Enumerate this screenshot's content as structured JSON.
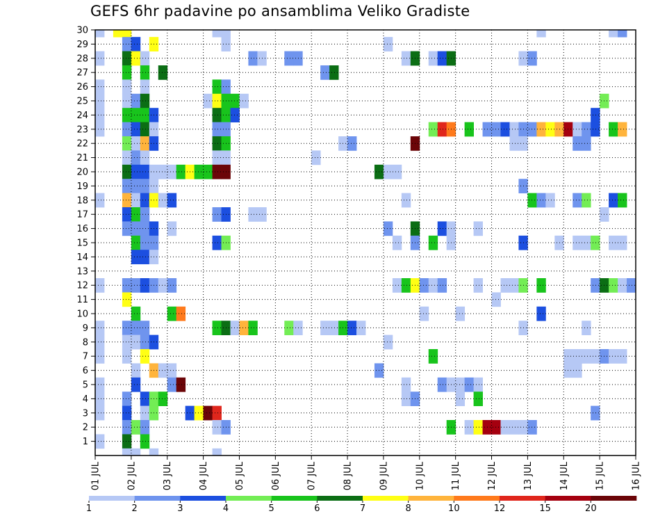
{
  "title": "GEFS 6hr padavine po ansamblima Veliko Gradiste",
  "chart_data": {
    "type": "heatmap",
    "title": "GEFS 6hr padavine po ansamblima Veliko Gradiste",
    "xlabel": "",
    "ylabel": "",
    "x_tick_labels": [
      "01 JUL",
      "02 JUL",
      "03 JUL",
      "04 JUL",
      "05 JUL",
      "06 JUL",
      "07 JUL",
      "08 JUL",
      "09 JUL",
      "10 JUL",
      "11 JUL",
      "12 JUL",
      "13 JUL",
      "14 JUL",
      "15 JUL",
      "16 JUL"
    ],
    "y_tick_labels": [
      "1",
      "2",
      "3",
      "4",
      "5",
      "6",
      "7",
      "8",
      "9",
      "10",
      "11",
      "12",
      "13",
      "14",
      "15",
      "16",
      "17",
      "18",
      "19",
      "20",
      "21",
      "22",
      "23",
      "24",
      "25",
      "26",
      "27",
      "28",
      "29",
      "30"
    ],
    "y_range": [
      0,
      30
    ],
    "x_steps_per_day": 4,
    "x_steps_total": 60,
    "grid": "dotted",
    "colorbar": {
      "position": "bottom",
      "labels": [
        "1",
        "2",
        "3",
        "4",
        "5",
        "6",
        "7",
        "8",
        "10",
        "12",
        "15",
        "20"
      ],
      "colors": [
        "#b6c8f5",
        "#6f94ee",
        "#1c4fe0",
        "#73ed55",
        "#18c41c",
        "#0b6e14",
        "#ffff14",
        "#ffb43c",
        "#ff7a1c",
        "#e0261c",
        "#a5000f",
        "#6b0508"
      ]
    },
    "cells": [
      [
        0,
        30,
        1
      ],
      [
        2,
        30,
        7
      ],
      [
        3,
        30,
        7
      ],
      [
        13,
        30,
        1
      ],
      [
        14,
        30,
        1
      ],
      [
        49,
        30,
        1
      ],
      [
        57,
        30,
        1
      ],
      [
        58,
        30,
        2
      ],
      [
        3,
        29,
        2
      ],
      [
        4,
        29,
        3
      ],
      [
        6,
        29,
        7
      ],
      [
        14,
        29,
        1
      ],
      [
        32,
        29,
        1
      ],
      [
        0,
        28,
        1
      ],
      [
        3,
        28,
        6
      ],
      [
        4,
        28,
        7
      ],
      [
        5,
        28,
        1
      ],
      [
        17,
        28,
        2
      ],
      [
        18,
        28,
        1
      ],
      [
        21,
        28,
        2
      ],
      [
        22,
        28,
        2
      ],
      [
        34,
        28,
        1
      ],
      [
        35,
        28,
        6
      ],
      [
        37,
        28,
        1
      ],
      [
        38,
        28,
        3
      ],
      [
        39,
        28,
        6
      ],
      [
        47,
        28,
        1
      ],
      [
        48,
        28,
        2
      ],
      [
        3,
        27,
        5
      ],
      [
        5,
        27,
        5
      ],
      [
        7,
        27,
        6
      ],
      [
        25,
        27,
        2
      ],
      [
        26,
        27,
        6
      ],
      [
        0,
        26,
        1
      ],
      [
        3,
        26,
        1
      ],
      [
        5,
        26,
        1
      ],
      [
        13,
        26,
        5
      ],
      [
        14,
        26,
        2
      ],
      [
        0,
        25,
        1
      ],
      [
        3,
        25,
        1
      ],
      [
        4,
        25,
        2
      ],
      [
        5,
        25,
        6
      ],
      [
        12,
        25,
        1
      ],
      [
        13,
        25,
        7
      ],
      [
        14,
        25,
        5
      ],
      [
        15,
        25,
        5
      ],
      [
        16,
        25,
        1
      ],
      [
        56,
        25,
        4
      ],
      [
        0,
        24,
        1
      ],
      [
        3,
        24,
        5
      ],
      [
        4,
        24,
        5
      ],
      [
        5,
        24,
        5
      ],
      [
        6,
        24,
        3
      ],
      [
        13,
        24,
        6
      ],
      [
        14,
        24,
        5
      ],
      [
        15,
        24,
        3
      ],
      [
        55,
        24,
        3
      ],
      [
        0,
        23,
        1
      ],
      [
        3,
        23,
        2
      ],
      [
        4,
        23,
        3
      ],
      [
        5,
        23,
        6
      ],
      [
        6,
        23,
        1
      ],
      [
        13,
        23,
        2
      ],
      [
        14,
        23,
        2
      ],
      [
        37,
        23,
        4
      ],
      [
        38,
        23,
        10
      ],
      [
        39,
        23,
        9
      ],
      [
        41,
        23,
        5
      ],
      [
        43,
        23,
        2
      ],
      [
        44,
        23,
        2
      ],
      [
        45,
        23,
        3
      ],
      [
        46,
        23,
        1
      ],
      [
        47,
        23,
        2
      ],
      [
        48,
        23,
        2
      ],
      [
        49,
        23,
        8
      ],
      [
        50,
        23,
        7
      ],
      [
        51,
        23,
        8
      ],
      [
        52,
        23,
        11
      ],
      [
        53,
        23,
        1
      ],
      [
        54,
        23,
        2
      ],
      [
        55,
        23,
        3
      ],
      [
        57,
        23,
        5
      ],
      [
        58,
        23,
        8
      ],
      [
        3,
        22,
        4
      ],
      [
        4,
        22,
        1
      ],
      [
        5,
        22,
        8
      ],
      [
        6,
        22,
        3
      ],
      [
        13,
        22,
        6
      ],
      [
        14,
        22,
        5
      ],
      [
        27,
        22,
        1
      ],
      [
        28,
        22,
        2
      ],
      [
        35,
        22,
        12
      ],
      [
        46,
        22,
        1
      ],
      [
        47,
        22,
        1
      ],
      [
        53,
        22,
        2
      ],
      [
        54,
        22,
        2
      ],
      [
        3,
        21,
        1
      ],
      [
        4,
        21,
        2
      ],
      [
        5,
        21,
        1
      ],
      [
        13,
        21,
        1
      ],
      [
        14,
        21,
        1
      ],
      [
        24,
        21,
        1
      ],
      [
        3,
        20,
        6
      ],
      [
        4,
        20,
        3
      ],
      [
        5,
        20,
        3
      ],
      [
        6,
        20,
        1
      ],
      [
        7,
        20,
        1
      ],
      [
        8,
        20,
        1
      ],
      [
        9,
        20,
        5
      ],
      [
        10,
        20,
        7
      ],
      [
        11,
        20,
        5
      ],
      [
        12,
        20,
        5
      ],
      [
        13,
        20,
        12
      ],
      [
        14,
        20,
        12
      ],
      [
        31,
        20,
        6
      ],
      [
        32,
        20,
        1
      ],
      [
        33,
        20,
        1
      ],
      [
        3,
        19,
        2
      ],
      [
        4,
        19,
        2
      ],
      [
        5,
        19,
        2
      ],
      [
        6,
        19,
        1
      ],
      [
        47,
        19,
        2
      ],
      [
        0,
        18,
        1
      ],
      [
        3,
        18,
        8
      ],
      [
        4,
        18,
        1
      ],
      [
        5,
        18,
        3
      ],
      [
        6,
        18,
        7
      ],
      [
        7,
        18,
        1
      ],
      [
        8,
        18,
        3
      ],
      [
        34,
        18,
        1
      ],
      [
        48,
        18,
        5
      ],
      [
        49,
        18,
        2
      ],
      [
        50,
        18,
        1
      ],
      [
        53,
        18,
        2
      ],
      [
        54,
        18,
        4
      ],
      [
        57,
        18,
        3
      ],
      [
        58,
        18,
        5
      ],
      [
        3,
        17,
        3
      ],
      [
        4,
        17,
        5
      ],
      [
        5,
        17,
        2
      ],
      [
        13,
        17,
        2
      ],
      [
        14,
        17,
        3
      ],
      [
        17,
        17,
        1
      ],
      [
        18,
        17,
        1
      ],
      [
        56,
        17,
        1
      ],
      [
        3,
        16,
        2
      ],
      [
        4,
        16,
        2
      ],
      [
        5,
        16,
        2
      ],
      [
        6,
        16,
        3
      ],
      [
        8,
        16,
        1
      ],
      [
        32,
        16,
        2
      ],
      [
        35,
        16,
        6
      ],
      [
        38,
        16,
        3
      ],
      [
        39,
        16,
        1
      ],
      [
        42,
        16,
        1
      ],
      [
        4,
        15,
        5
      ],
      [
        5,
        15,
        2
      ],
      [
        6,
        15,
        2
      ],
      [
        13,
        15,
        3
      ],
      [
        14,
        15,
        4
      ],
      [
        33,
        15,
        1
      ],
      [
        35,
        15,
        2
      ],
      [
        37,
        15,
        5
      ],
      [
        39,
        15,
        1
      ],
      [
        47,
        15,
        3
      ],
      [
        51,
        15,
        1
      ],
      [
        53,
        15,
        1
      ],
      [
        54,
        15,
        1
      ],
      [
        55,
        15,
        4
      ],
      [
        57,
        15,
        1
      ],
      [
        58,
        15,
        1
      ],
      [
        4,
        14,
        3
      ],
      [
        5,
        14,
        3
      ],
      [
        6,
        14,
        1
      ],
      [
        0,
        12,
        1
      ],
      [
        3,
        12,
        2
      ],
      [
        4,
        12,
        2
      ],
      [
        5,
        12,
        3
      ],
      [
        6,
        12,
        2
      ],
      [
        7,
        12,
        1
      ],
      [
        8,
        12,
        2
      ],
      [
        33,
        12,
        1
      ],
      [
        34,
        12,
        5
      ],
      [
        35,
        12,
        7
      ],
      [
        36,
        12,
        2
      ],
      [
        37,
        12,
        1
      ],
      [
        38,
        12,
        2
      ],
      [
        42,
        12,
        1
      ],
      [
        45,
        12,
        1
      ],
      [
        46,
        12,
        1
      ],
      [
        47,
        12,
        4
      ],
      [
        49,
        12,
        5
      ],
      [
        55,
        12,
        2
      ],
      [
        56,
        12,
        6
      ],
      [
        57,
        12,
        4
      ],
      [
        58,
        12,
        1
      ],
      [
        59,
        12,
        2
      ],
      [
        3,
        11,
        7
      ],
      [
        44,
        11,
        1
      ],
      [
        4,
        10,
        5
      ],
      [
        8,
        10,
        5
      ],
      [
        9,
        10,
        9
      ],
      [
        36,
        10,
        1
      ],
      [
        40,
        10,
        1
      ],
      [
        49,
        10,
        3
      ],
      [
        0,
        9,
        1
      ],
      [
        3,
        9,
        2
      ],
      [
        4,
        9,
        2
      ],
      [
        5,
        9,
        2
      ],
      [
        13,
        9,
        5
      ],
      [
        14,
        9,
        6
      ],
      [
        15,
        9,
        1
      ],
      [
        16,
        9,
        8
      ],
      [
        17,
        9,
        5
      ],
      [
        21,
        9,
        4
      ],
      [
        22,
        9,
        1
      ],
      [
        25,
        9,
        1
      ],
      [
        26,
        9,
        1
      ],
      [
        27,
        9,
        5
      ],
      [
        28,
        9,
        3
      ],
      [
        29,
        9,
        1
      ],
      [
        47,
        9,
        1
      ],
      [
        54,
        9,
        1
      ],
      [
        0,
        8,
        1
      ],
      [
        3,
        8,
        1
      ],
      [
        4,
        8,
        1
      ],
      [
        5,
        8,
        2
      ],
      [
        6,
        8,
        3
      ],
      [
        32,
        8,
        1
      ],
      [
        0,
        7,
        1
      ],
      [
        3,
        7,
        1
      ],
      [
        5,
        7,
        7
      ],
      [
        37,
        7,
        5
      ],
      [
        52,
        7,
        1
      ],
      [
        53,
        7,
        1
      ],
      [
        54,
        7,
        1
      ],
      [
        55,
        7,
        1
      ],
      [
        56,
        7,
        2
      ],
      [
        57,
        7,
        1
      ],
      [
        58,
        7,
        1
      ],
      [
        4,
        6,
        1
      ],
      [
        6,
        6,
        8
      ],
      [
        7,
        6,
        1
      ],
      [
        8,
        6,
        1
      ],
      [
        31,
        6,
        2
      ],
      [
        52,
        6,
        1
      ],
      [
        53,
        6,
        1
      ],
      [
        0,
        5,
        1
      ],
      [
        4,
        5,
        3
      ],
      [
        8,
        5,
        2
      ],
      [
        9,
        5,
        12
      ],
      [
        34,
        5,
        1
      ],
      [
        38,
        5,
        2
      ],
      [
        39,
        5,
        1
      ],
      [
        40,
        5,
        1
      ],
      [
        41,
        5,
        2
      ],
      [
        42,
        5,
        1
      ],
      [
        0,
        4,
        1
      ],
      [
        3,
        4,
        2
      ],
      [
        5,
        4,
        3
      ],
      [
        6,
        4,
        4
      ],
      [
        7,
        4,
        5
      ],
      [
        34,
        4,
        1
      ],
      [
        35,
        4,
        2
      ],
      [
        40,
        4,
        1
      ],
      [
        42,
        4,
        5
      ],
      [
        0,
        3,
        1
      ],
      [
        3,
        3,
        3
      ],
      [
        5,
        3,
        1
      ],
      [
        6,
        3,
        4
      ],
      [
        10,
        3,
        3
      ],
      [
        11,
        3,
        7
      ],
      [
        12,
        3,
        12
      ],
      [
        13,
        3,
        10
      ],
      [
        55,
        3,
        2
      ],
      [
        3,
        2,
        2
      ],
      [
        4,
        2,
        4
      ],
      [
        5,
        2,
        2
      ],
      [
        13,
        2,
        1
      ],
      [
        14,
        2,
        2
      ],
      [
        39,
        2,
        5
      ],
      [
        41,
        2,
        1
      ],
      [
        42,
        2,
        7
      ],
      [
        43,
        2,
        11
      ],
      [
        44,
        2,
        11
      ],
      [
        45,
        2,
        1
      ],
      [
        46,
        2,
        1
      ],
      [
        47,
        2,
        1
      ],
      [
        48,
        2,
        2
      ],
      [
        0,
        1,
        1
      ],
      [
        3,
        1,
        6
      ],
      [
        5,
        1,
        5
      ],
      [
        3,
        0,
        1
      ],
      [
        4,
        0,
        1
      ],
      [
        6,
        0,
        1
      ],
      [
        13,
        0,
        1
      ]
    ]
  }
}
